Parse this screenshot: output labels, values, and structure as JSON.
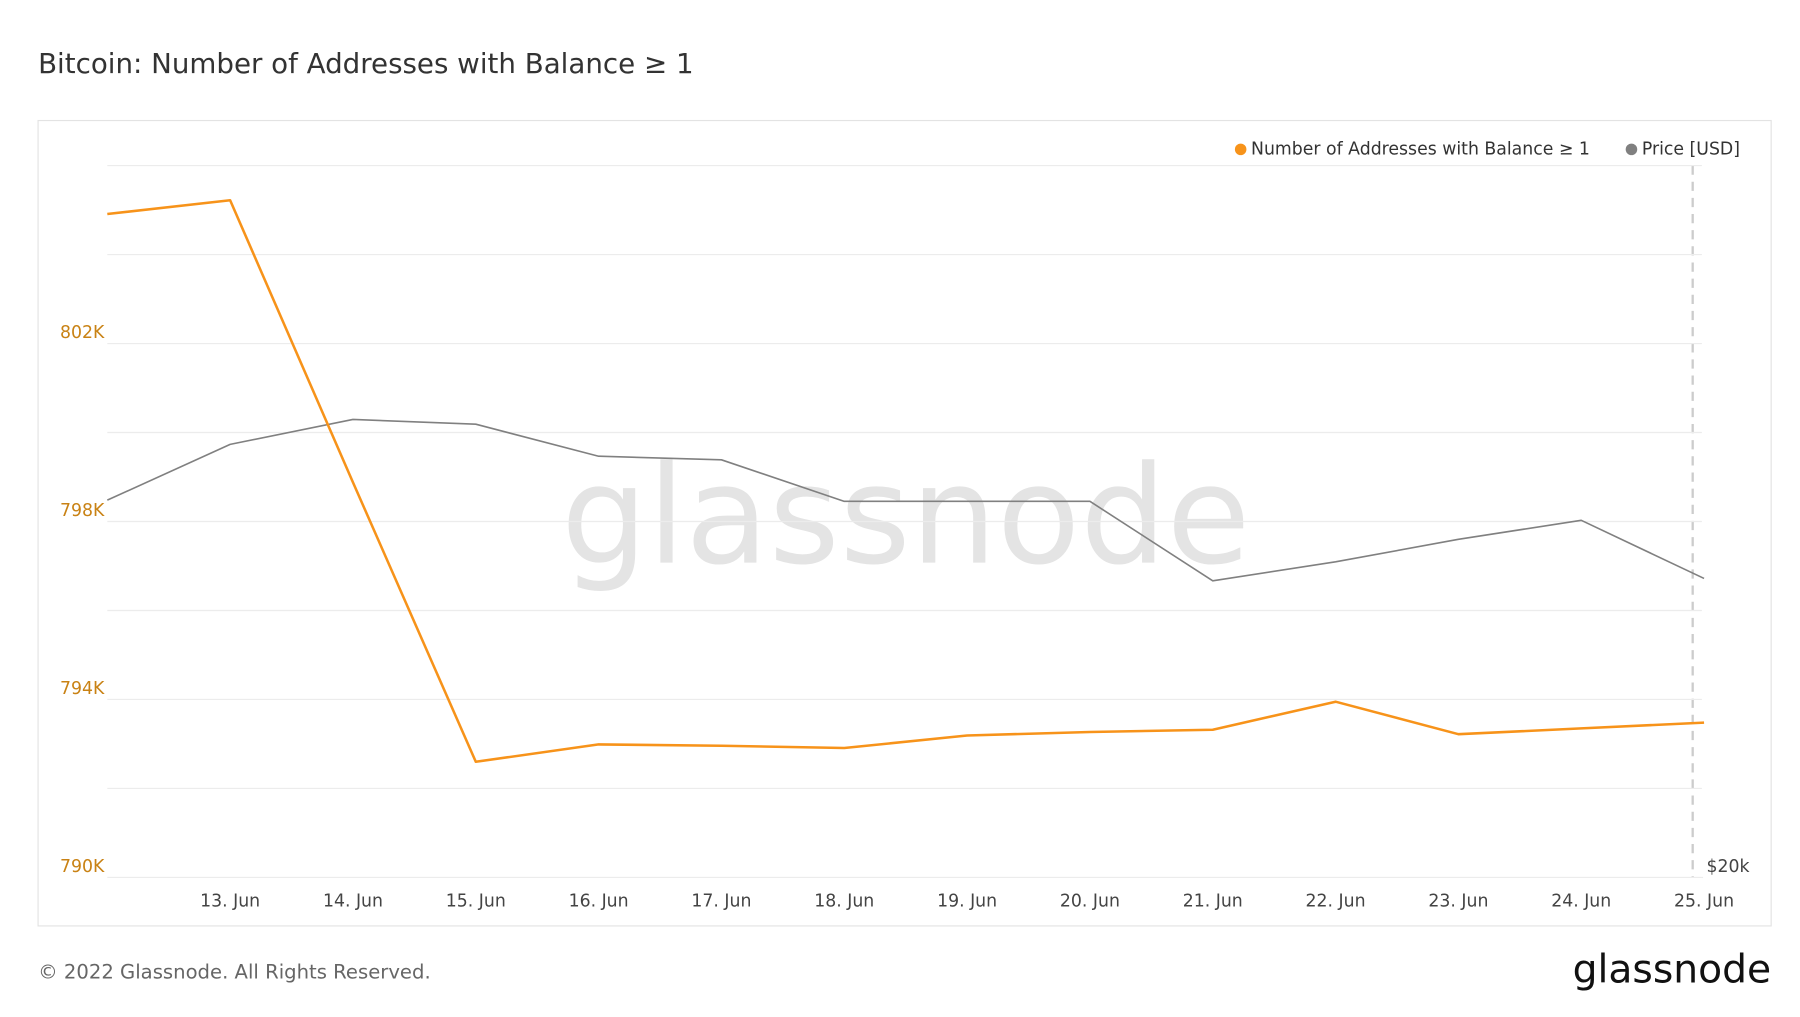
{
  "chart_data": {
    "type": "line",
    "title": "Bitcoin: Number of Addresses with Balance ≥ 1",
    "categories": [
      null,
      "13. Jun",
      "14. Jun",
      "15. Jun",
      "16. Jun",
      "17. Jun",
      "18. Jun",
      "19. Jun",
      "20. Jun",
      "21. Jun",
      "22. Jun",
      "23. Jun",
      "24. Jun",
      "25. Jun"
    ],
    "series": [
      {
        "name": "Number of Addresses with Balance ≥ 1",
        "color": "#f7931a",
        "values": [
          804910,
          805220,
          798880,
          792600,
          792990,
          792960,
          792910,
          793190,
          793270,
          793320,
          793950,
          793220,
          793350,
          793480
        ]
      },
      {
        "name": "Price [USD]",
        "color": "#808080",
        "axis": "y2",
        "values": [
          23180,
          23650,
          23860,
          23820,
          23550,
          23520,
          23170,
          23170,
          23170,
          22500,
          22660,
          22850,
          23010,
          22520
        ]
      }
    ],
    "ylim": [
      790000,
      806000
    ],
    "yticks": [
      {
        "value": 790000,
        "label": "790K"
      },
      {
        "value": 794000,
        "label": "794K"
      },
      {
        "value": 798000,
        "label": "798K"
      },
      {
        "value": 802000,
        "label": "802K"
      }
    ],
    "minor_grid": [
      792000,
      796000,
      800000,
      804000,
      806000
    ],
    "y2lim": [
      20000,
      26000
    ],
    "y2ticks": [
      {
        "value": 20000,
        "label": "$20k"
      }
    ],
    "grid": true,
    "legend": "top-right",
    "watermark": "glassnode",
    "copyright": "© 2022 Glassnode. All Rights Reserved.",
    "logo": "glassnode"
  }
}
